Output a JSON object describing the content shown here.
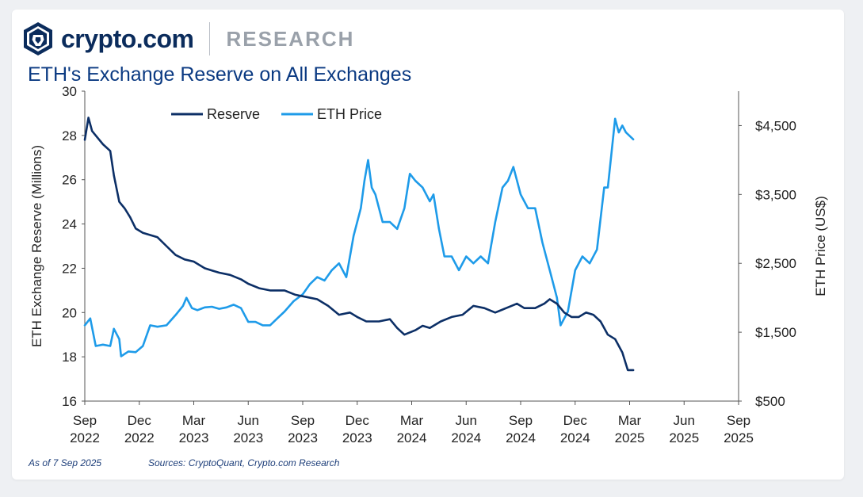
{
  "brand": {
    "name": "crypto.com",
    "section": "RESEARCH"
  },
  "colors": {
    "reserve": "#0c2f66",
    "price": "#1e9be9",
    "title": "#0b3a82",
    "axis": "#222222"
  },
  "footer": {
    "as_of": "As of 7 Sep 2025",
    "sources": "Sources: CryptoQuant, Crypto.com Research"
  },
  "chart_data": {
    "type": "line",
    "title": "ETH's Exchange Reserve on All Exchanges",
    "ylabel": "ETH Exchange Reserve (Millions)",
    "y2label": "ETH Price (US$)",
    "ylim": [
      16,
      30
    ],
    "y2lim": [
      500,
      5000
    ],
    "yticks": [
      "16",
      "18",
      "20",
      "22",
      "24",
      "26",
      "28",
      "30"
    ],
    "y2ticks": [
      "$500",
      "$1,500",
      "$2,500",
      "$3,500",
      "$4,500"
    ],
    "y2tick_values": [
      500,
      1500,
      2500,
      3500,
      4500
    ],
    "xticks": [
      [
        "Sep",
        "2022"
      ],
      [
        "Dec",
        "2022"
      ],
      [
        "Mar",
        "2023"
      ],
      [
        "Jun",
        "2023"
      ],
      [
        "Sep",
        "2023"
      ],
      [
        "Dec",
        "2023"
      ],
      [
        "Mar",
        "2024"
      ],
      [
        "Jun",
        "2024"
      ],
      [
        "Sep",
        "2024"
      ],
      [
        "Dec",
        "2024"
      ],
      [
        "Mar",
        "2025"
      ],
      [
        "Jun",
        "2025"
      ],
      [
        "Sep",
        "2025"
      ]
    ],
    "x_unit": "months since Sep 2022",
    "legend": "top-center",
    "series": [
      {
        "name": "Reserve",
        "axis": "left",
        "points": [
          [
            0,
            27.8
          ],
          [
            0.2,
            28.8
          ],
          [
            0.4,
            28.2
          ],
          [
            0.6,
            28.0
          ],
          [
            1.0,
            27.6
          ],
          [
            1.4,
            27.3
          ],
          [
            1.6,
            26.2
          ],
          [
            1.9,
            25.0
          ],
          [
            2.2,
            24.7
          ],
          [
            2.5,
            24.3
          ],
          [
            2.8,
            23.8
          ],
          [
            3.2,
            23.6
          ],
          [
            3.6,
            23.5
          ],
          [
            4.0,
            23.4
          ],
          [
            4.5,
            23.0
          ],
          [
            5.0,
            22.6
          ],
          [
            5.5,
            22.4
          ],
          [
            6.0,
            22.3
          ],
          [
            6.6,
            22.0
          ],
          [
            7.0,
            21.9
          ],
          [
            7.4,
            21.8
          ],
          [
            8.0,
            21.7
          ],
          [
            8.6,
            21.5
          ],
          [
            9.0,
            21.3
          ],
          [
            9.6,
            21.1
          ],
          [
            10.2,
            21.0
          ],
          [
            11.0,
            21.0
          ],
          [
            11.6,
            20.8
          ],
          [
            12.2,
            20.7
          ],
          [
            12.8,
            20.6
          ],
          [
            13.4,
            20.3
          ],
          [
            14.0,
            19.9
          ],
          [
            14.6,
            20.0
          ],
          [
            15.0,
            19.8
          ],
          [
            15.5,
            19.6
          ],
          [
            16.2,
            19.6
          ],
          [
            16.8,
            19.7
          ],
          [
            17.2,
            19.3
          ],
          [
            17.6,
            19.0
          ],
          [
            18.2,
            19.2
          ],
          [
            18.6,
            19.4
          ],
          [
            19.0,
            19.3
          ],
          [
            19.6,
            19.6
          ],
          [
            20.2,
            19.8
          ],
          [
            20.8,
            19.9
          ],
          [
            21.4,
            20.3
          ],
          [
            22.0,
            20.2
          ],
          [
            22.6,
            20.0
          ],
          [
            23.2,
            20.2
          ],
          [
            23.8,
            20.4
          ],
          [
            24.2,
            20.2
          ],
          [
            24.8,
            20.2
          ],
          [
            25.3,
            20.4
          ],
          [
            25.6,
            20.6
          ],
          [
            26.0,
            20.4
          ],
          [
            26.4,
            20.0
          ],
          [
            26.8,
            19.8
          ],
          [
            27.2,
            19.8
          ],
          [
            27.6,
            20.0
          ],
          [
            28.0,
            19.9
          ],
          [
            28.4,
            19.6
          ],
          [
            28.8,
            19.0
          ],
          [
            29.2,
            18.8
          ],
          [
            29.6,
            18.2
          ],
          [
            29.9,
            17.4
          ],
          [
            30.2,
            17.4
          ]
        ]
      },
      {
        "name": "ETH Price",
        "axis": "right",
        "points": [
          [
            0,
            1600
          ],
          [
            0.3,
            1700
          ],
          [
            0.6,
            1300
          ],
          [
            1.0,
            1320
          ],
          [
            1.4,
            1300
          ],
          [
            1.6,
            1550
          ],
          [
            1.9,
            1400
          ],
          [
            2.0,
            1150
          ],
          [
            2.4,
            1220
          ],
          [
            2.8,
            1210
          ],
          [
            3.2,
            1300
          ],
          [
            3.6,
            1600
          ],
          [
            4.0,
            1580
          ],
          [
            4.5,
            1600
          ],
          [
            5.0,
            1750
          ],
          [
            5.4,
            1880
          ],
          [
            5.6,
            2000
          ],
          [
            5.9,
            1850
          ],
          [
            6.2,
            1820
          ],
          [
            6.6,
            1860
          ],
          [
            7.0,
            1870
          ],
          [
            7.4,
            1840
          ],
          [
            7.8,
            1860
          ],
          [
            8.2,
            1900
          ],
          [
            8.6,
            1850
          ],
          [
            9.0,
            1650
          ],
          [
            9.4,
            1650
          ],
          [
            9.8,
            1600
          ],
          [
            10.2,
            1600
          ],
          [
            10.6,
            1700
          ],
          [
            11.0,
            1800
          ],
          [
            11.5,
            1950
          ],
          [
            12.0,
            2050
          ],
          [
            12.4,
            2200
          ],
          [
            12.8,
            2300
          ],
          [
            13.2,
            2250
          ],
          [
            13.6,
            2400
          ],
          [
            14.0,
            2500
          ],
          [
            14.4,
            2300
          ],
          [
            14.8,
            2900
          ],
          [
            15.2,
            3300
          ],
          [
            15.4,
            3700
          ],
          [
            15.6,
            4000
          ],
          [
            15.8,
            3600
          ],
          [
            16.0,
            3500
          ],
          [
            16.4,
            3100
          ],
          [
            16.8,
            3100
          ],
          [
            17.2,
            3000
          ],
          [
            17.6,
            3300
          ],
          [
            17.9,
            3800
          ],
          [
            18.2,
            3700
          ],
          [
            18.6,
            3600
          ],
          [
            19.0,
            3400
          ],
          [
            19.2,
            3500
          ],
          [
            19.5,
            3000
          ],
          [
            19.8,
            2600
          ],
          [
            20.2,
            2600
          ],
          [
            20.6,
            2400
          ],
          [
            21.0,
            2600
          ],
          [
            21.4,
            2500
          ],
          [
            21.8,
            2600
          ],
          [
            22.2,
            2500
          ],
          [
            22.6,
            3100
          ],
          [
            23.0,
            3600
          ],
          [
            23.3,
            3700
          ],
          [
            23.6,
            3900
          ],
          [
            24.0,
            3500
          ],
          [
            24.4,
            3300
          ],
          [
            24.8,
            3300
          ],
          [
            25.2,
            2800
          ],
          [
            25.6,
            2400
          ],
          [
            26.0,
            2000
          ],
          [
            26.2,
            1600
          ],
          [
            26.6,
            1800
          ],
          [
            27.0,
            2400
          ],
          [
            27.4,
            2600
          ],
          [
            27.8,
            2500
          ],
          [
            28.2,
            2700
          ],
          [
            28.6,
            3600
          ],
          [
            28.8,
            3600
          ],
          [
            29.0,
            4100
          ],
          [
            29.2,
            4600
          ],
          [
            29.4,
            4400
          ],
          [
            29.6,
            4500
          ],
          [
            29.8,
            4400
          ],
          [
            30.2,
            4300
          ]
        ]
      }
    ]
  }
}
